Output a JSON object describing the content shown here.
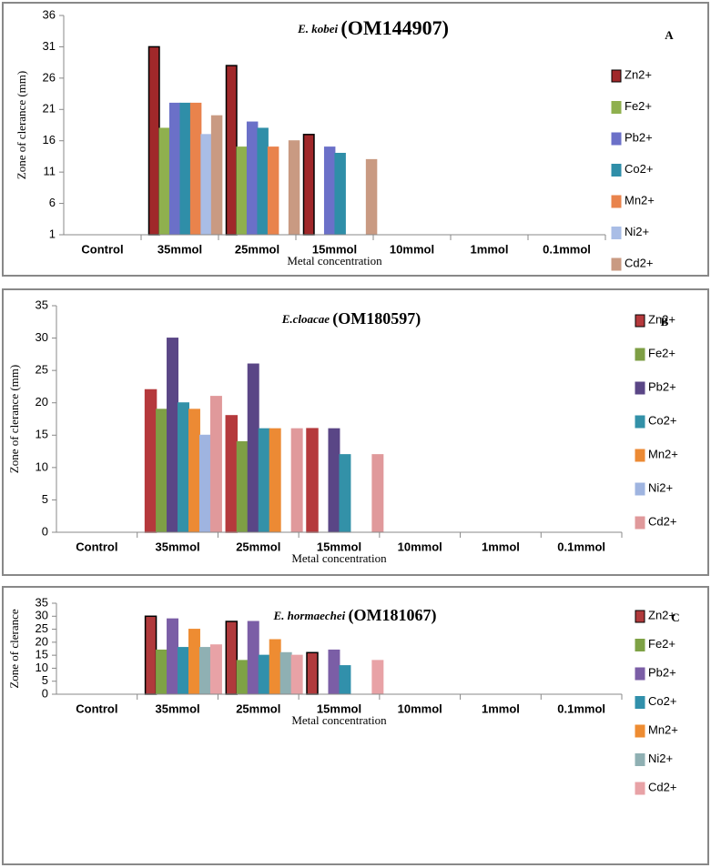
{
  "chart_data": [
    {
      "type": "bar",
      "title": [
        "E. kobei",
        "(OM144907)"
      ],
      "panel_label": "A",
      "y_label": "Zone of clerance (mm)",
      "x_label": "Metal concentration",
      "categories": [
        "Control",
        "35mmol",
        "25mmol",
        "15mmol",
        "10mmol",
        "1mmol",
        "0.1mmol"
      ],
      "ylim": [
        1,
        36
      ],
      "yticks": [
        1,
        6,
        11,
        16,
        21,
        26,
        31,
        36
      ],
      "series": [
        {
          "name": "Zn2+",
          "color": "#a0282a",
          "values": [
            1,
            31,
            28,
            17,
            1,
            1,
            1
          ]
        },
        {
          "name": "Fe2+",
          "color": "#8fb04e",
          "values": [
            1,
            18,
            15,
            1,
            1,
            1,
            1
          ]
        },
        {
          "name": "Pb2+",
          "color": "#6b70c8",
          "values": [
            1,
            22,
            19,
            15,
            1,
            1,
            1
          ]
        },
        {
          "name": "Co2+",
          "color": "#2f8ea8",
          "values": [
            1,
            22,
            18,
            14,
            1,
            1,
            1
          ]
        },
        {
          "name": "Mn2+",
          "color": "#e9834c",
          "values": [
            1,
            22,
            15,
            1,
            1,
            1,
            1
          ]
        },
        {
          "name": "Ni2+",
          "color": "#a9bde6",
          "values": [
            1,
            17,
            1,
            1,
            1,
            1,
            1
          ]
        },
        {
          "name": "Cd2+",
          "color": "#c99a82",
          "values": [
            1,
            20,
            16,
            13,
            1,
            1,
            1
          ]
        }
      ]
    },
    {
      "type": "bar",
      "title": [
        "E.cloacae",
        "(OM180597)"
      ],
      "panel_label": "B",
      "y_label": "Zone of clerance (mm)",
      "x_label": "Metal concentration",
      "categories": [
        "Control",
        "35mmol",
        "25mmol",
        "15mmol",
        "10mmol",
        "1mmol",
        "0.1mmol"
      ],
      "ylim": [
        0,
        35
      ],
      "yticks": [
        0,
        5,
        10,
        15,
        20,
        25,
        30,
        35
      ],
      "series": [
        {
          "name": "Zn2+",
          "color": "#b5393c",
          "values": [
            0,
            22,
            18,
            16,
            0,
            0,
            0
          ]
        },
        {
          "name": "Fe2+",
          "color": "#7e9f45",
          "values": [
            0,
            19,
            14,
            0,
            0,
            0,
            0
          ]
        },
        {
          "name": "Pb2+",
          "color": "#5a4686",
          "values": [
            0,
            30,
            26,
            16,
            0,
            0,
            0
          ]
        },
        {
          "name": "Co2+",
          "color": "#3391a8",
          "values": [
            0,
            20,
            16,
            12,
            0,
            0,
            0
          ]
        },
        {
          "name": "Mn2+",
          "color": "#ec8a34",
          "values": [
            0,
            19,
            16,
            0,
            0,
            0,
            0
          ]
        },
        {
          "name": "Ni2+",
          "color": "#9fb4e0",
          "values": [
            0,
            15,
            0,
            0,
            0,
            0,
            0
          ]
        },
        {
          "name": "Cd2+",
          "color": "#e0999b",
          "values": [
            0,
            21,
            16,
            12,
            0,
            0,
            0
          ]
        }
      ]
    },
    {
      "type": "bar",
      "title": [
        "E. hormaechei",
        "(OM181067)"
      ],
      "panel_label": "C",
      "y_label": "Zone of clerance",
      "x_label": "Metal concentration",
      "categories": [
        "Control",
        "35mmol",
        "25mmol",
        "15mmol",
        "10mmol",
        "1mmol",
        "0.1mmol"
      ],
      "ylim": [
        0,
        35
      ],
      "yticks": [
        0,
        5,
        10,
        15,
        20,
        25,
        30,
        35
      ],
      "series": [
        {
          "name": "Zn2+",
          "color": "#b03a3c",
          "values": [
            0,
            30,
            28,
            16,
            0,
            0,
            0
          ]
        },
        {
          "name": "Fe2+",
          "color": "#7ea245",
          "values": [
            0,
            17,
            13,
            0,
            0,
            0,
            0
          ]
        },
        {
          "name": "Pb2+",
          "color": "#7b5ea6",
          "values": [
            0,
            29,
            28,
            17,
            0,
            0,
            0
          ]
        },
        {
          "name": "Co2+",
          "color": "#3190ab",
          "values": [
            0,
            18,
            15,
            11,
            0,
            0,
            0
          ]
        },
        {
          "name": "Mn2+",
          "color": "#ee8c32",
          "values": [
            0,
            25,
            21,
            0,
            0,
            0,
            0
          ]
        },
        {
          "name": "Ni2+",
          "color": "#8fb0b3",
          "values": [
            0,
            18,
            16,
            0,
            0,
            0,
            0
          ]
        },
        {
          "name": "Cd2+",
          "color": "#e8a2a6",
          "values": [
            0,
            19,
            15,
            13,
            0,
            0,
            0
          ]
        }
      ]
    }
  ]
}
